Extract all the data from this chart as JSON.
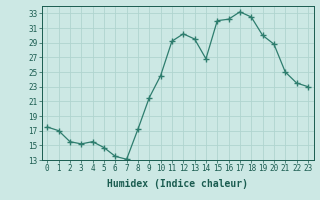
{
  "x": [
    0,
    1,
    2,
    3,
    4,
    5,
    6,
    7,
    8,
    9,
    10,
    11,
    12,
    13,
    14,
    15,
    16,
    17,
    18,
    19,
    20,
    21,
    22,
    23
  ],
  "y": [
    17.5,
    17.0,
    15.5,
    15.2,
    15.5,
    14.7,
    13.5,
    13.1,
    17.2,
    21.5,
    24.5,
    29.2,
    30.2,
    29.5,
    26.8,
    32.0,
    32.2,
    33.2,
    32.5,
    30.0,
    28.8,
    25.0,
    23.5,
    23.0
  ],
  "line_color": "#2e7d6e",
  "marker": "+",
  "marker_size": 4,
  "bg_color": "#cce8e4",
  "grid_color": "#b0d4cf",
  "xlabel": "Humidex (Indice chaleur)",
  "ylabel": "",
  "xlim": [
    -0.5,
    23.5
  ],
  "ylim": [
    13,
    34
  ],
  "yticks": [
    13,
    15,
    17,
    19,
    21,
    23,
    25,
    27,
    29,
    31,
    33
  ],
  "xticks": [
    0,
    1,
    2,
    3,
    4,
    5,
    6,
    7,
    8,
    9,
    10,
    11,
    12,
    13,
    14,
    15,
    16,
    17,
    18,
    19,
    20,
    21,
    22,
    23
  ],
  "tick_label_fontsize": 5.5,
  "xlabel_fontsize": 7,
  "tick_color": "#1a5c50",
  "axis_color": "#1a5c50",
  "linewidth": 0.9,
  "marker_linewidth": 1.0
}
